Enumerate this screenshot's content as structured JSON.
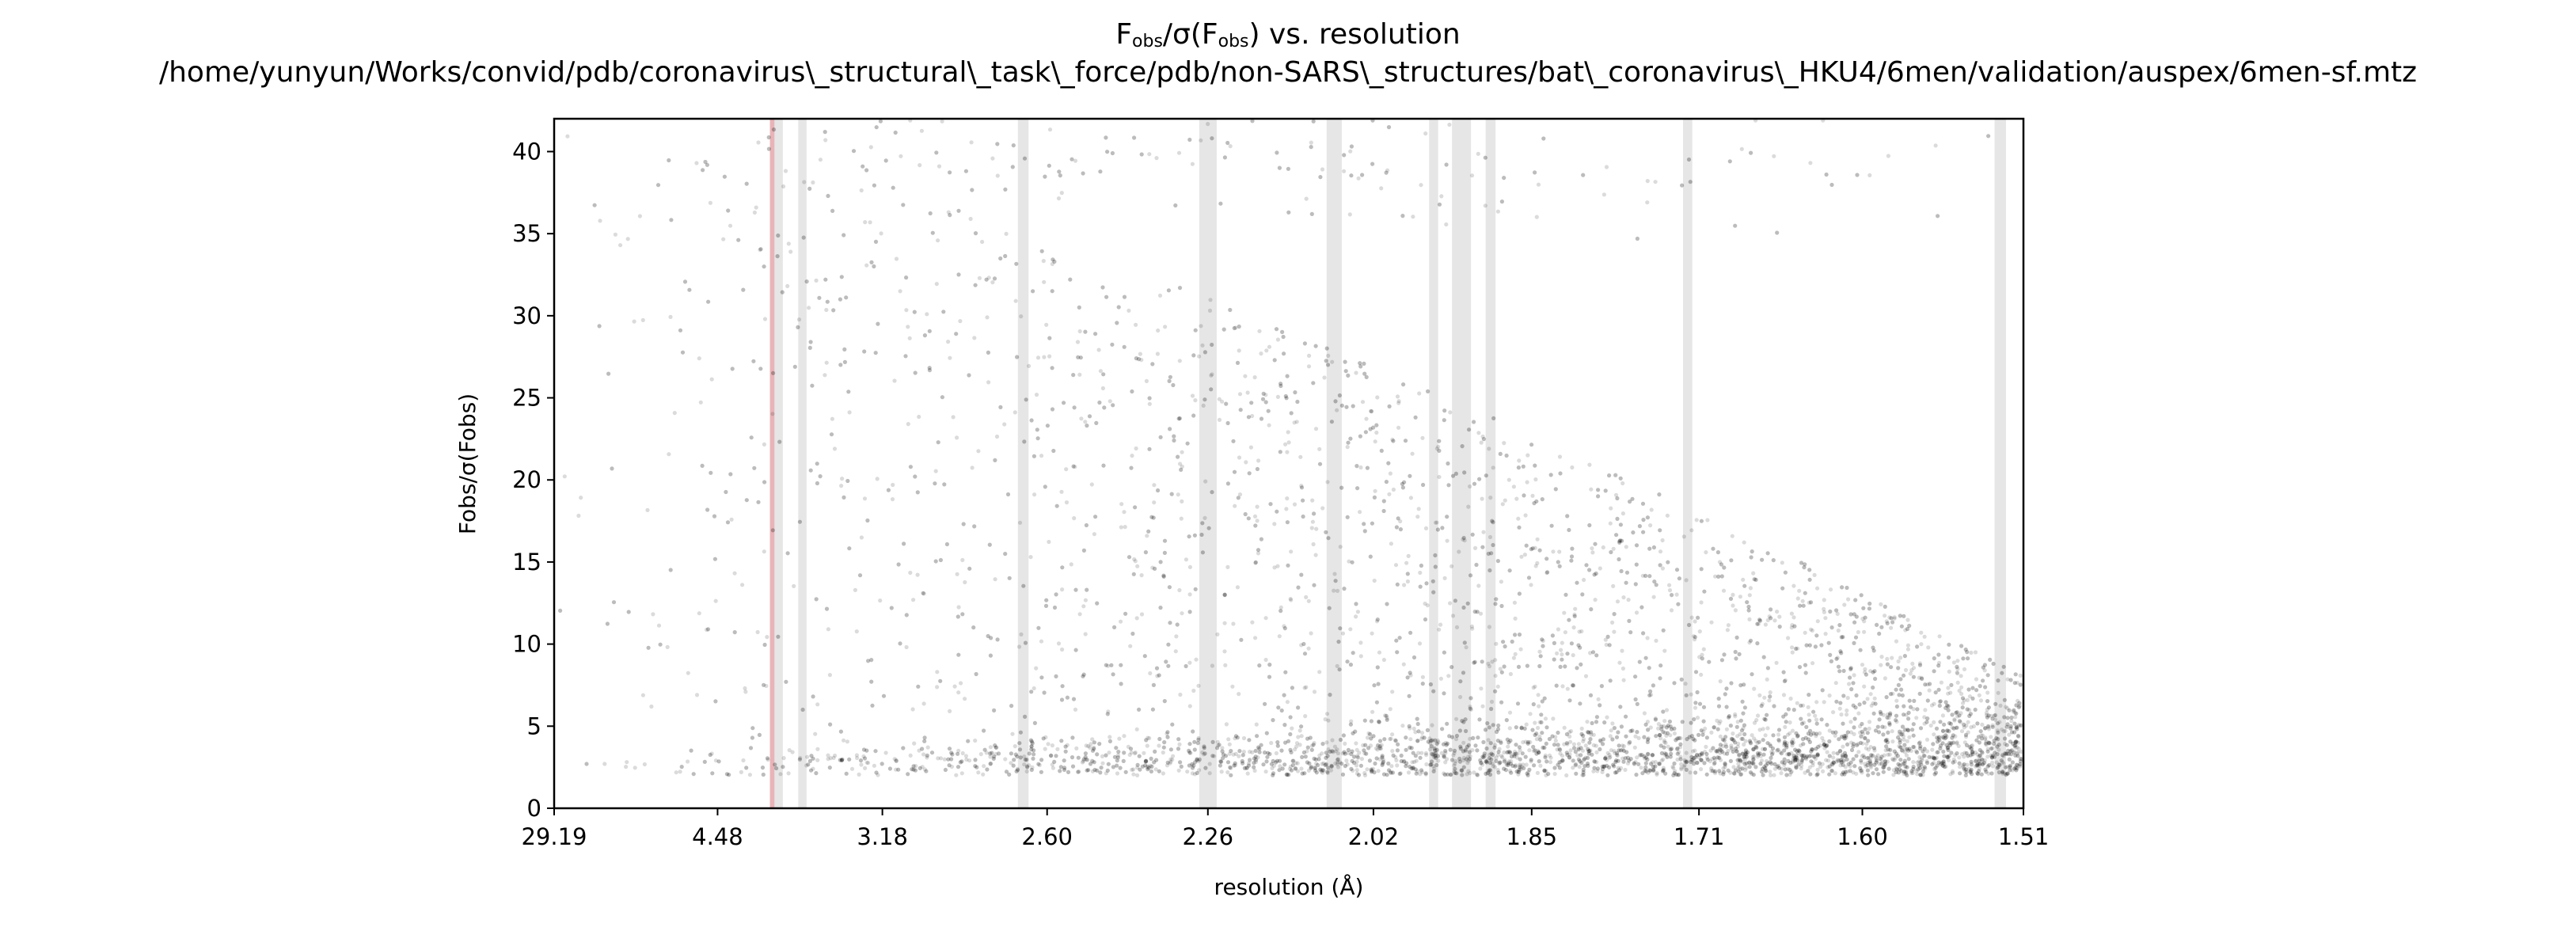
{
  "chart_data": {
    "type": "scatter",
    "title_main": "F",
    "title_sub1": "obs",
    "title_mid": "/σ(F",
    "title_sub2": "obs",
    "title_end": ") vs. resolution",
    "subtitle": "/home/yunyun/Works/convid/pdb/coronavirus\\_structural\\_task\\_force/pdb/non-SARS\\_structures/bat\\_coronavirus\\_HKU4/6men/validation/auspex/6men-sf.mtz",
    "xlabel": "resolution (Å)",
    "ylabel": "Fobs/σ(Fobs)",
    "x_scale": "1/d² (reciprocal squared resolution)",
    "xlim_resolution": [
      29.19,
      1.51
    ],
    "ylim": [
      0,
      42
    ],
    "x_ticks": [
      "29.19",
      "4.48",
      "3.18",
      "2.60",
      "2.26",
      "2.02",
      "1.85",
      "1.71",
      "1.60",
      "1.51"
    ],
    "y_ticks": [
      "0",
      "5",
      "10",
      "15",
      "20",
      "25",
      "30",
      "35",
      "40"
    ],
    "point_color": "#000000",
    "ice_ring_color": "#e6e6e6",
    "highlight_ring_color": "#e8b4b8",
    "grey_bands_resolution": [
      [
        3.87,
        3.8
      ],
      [
        3.68,
        3.62
      ],
      [
        2.68,
        2.65
      ],
      [
        2.275,
        2.245
      ],
      [
        2.08,
        2.06
      ],
      [
        1.955,
        1.945
      ],
      [
        1.93,
        1.91
      ],
      [
        1.895,
        1.885
      ],
      [
        1.722,
        1.715
      ],
      [
        1.525,
        1.519
      ]
    ],
    "red_band_resolution": [
      3.91,
      3.87
    ]
  }
}
